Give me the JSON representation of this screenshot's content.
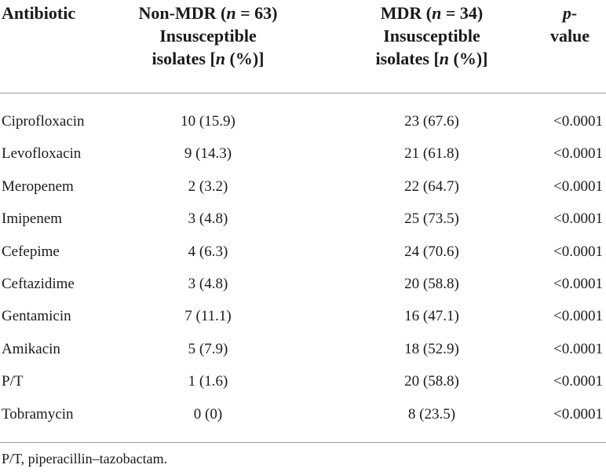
{
  "table": {
    "headers": {
      "antibiotic": "Antibiotic",
      "non_mdr": {
        "prefix": "Non-MDR (",
        "n_var": "n",
        "suffix": " = 63)",
        "line2": "Insusceptible",
        "line3_pre": "isolates [",
        "line3_var": "n",
        "line3_post": " (%)]"
      },
      "mdr": {
        "prefix": "MDR (",
        "n_var": "n",
        "suffix": " = 34)",
        "line2": "Insusceptible",
        "line3_pre": "isolates [",
        "line3_var": "n",
        "line3_post": " (%)]"
      },
      "pvalue": {
        "line1": "p-",
        "line2": "value"
      }
    },
    "rows": [
      {
        "antibiotic": "Ciprofloxacin",
        "non_mdr": "10 (15.9)",
        "mdr": "23 (67.6)",
        "p": "<0.0001"
      },
      {
        "antibiotic": "Levofloxacin",
        "non_mdr": "9 (14.3)",
        "mdr": "21 (61.8)",
        "p": "<0.0001"
      },
      {
        "antibiotic": "Meropenem",
        "non_mdr": "2 (3.2)",
        "mdr": "22 (64.7)",
        "p": "<0.0001"
      },
      {
        "antibiotic": "Imipenem",
        "non_mdr": "3 (4.8)",
        "mdr": "25 (73.5)",
        "p": "<0.0001"
      },
      {
        "antibiotic": "Cefepime",
        "non_mdr": "4 (6.3)",
        "mdr": "24 (70.6)",
        "p": "<0.0001"
      },
      {
        "antibiotic": "Ceftazidime",
        "non_mdr": "3 (4.8)",
        "mdr": "20 (58.8)",
        "p": "<0.0001"
      },
      {
        "antibiotic": "Gentamicin",
        "non_mdr": "7 (11.1)",
        "mdr": "16 (47.1)",
        "p": "<0.0001"
      },
      {
        "antibiotic": "Amikacin",
        "non_mdr": "5 (7.9)",
        "mdr": "18 (52.9)",
        "p": "<0.0001"
      },
      {
        "antibiotic": "P/T",
        "non_mdr": "1 (1.6)",
        "mdr": "20 (58.8)",
        "p": "<0.0001"
      },
      {
        "antibiotic": "Tobramycin",
        "non_mdr": "0 (0)",
        "mdr": "8 (23.5)",
        "p": "<0.0001"
      }
    ],
    "footnote": "P/T, piperacillin–tazobactam."
  }
}
